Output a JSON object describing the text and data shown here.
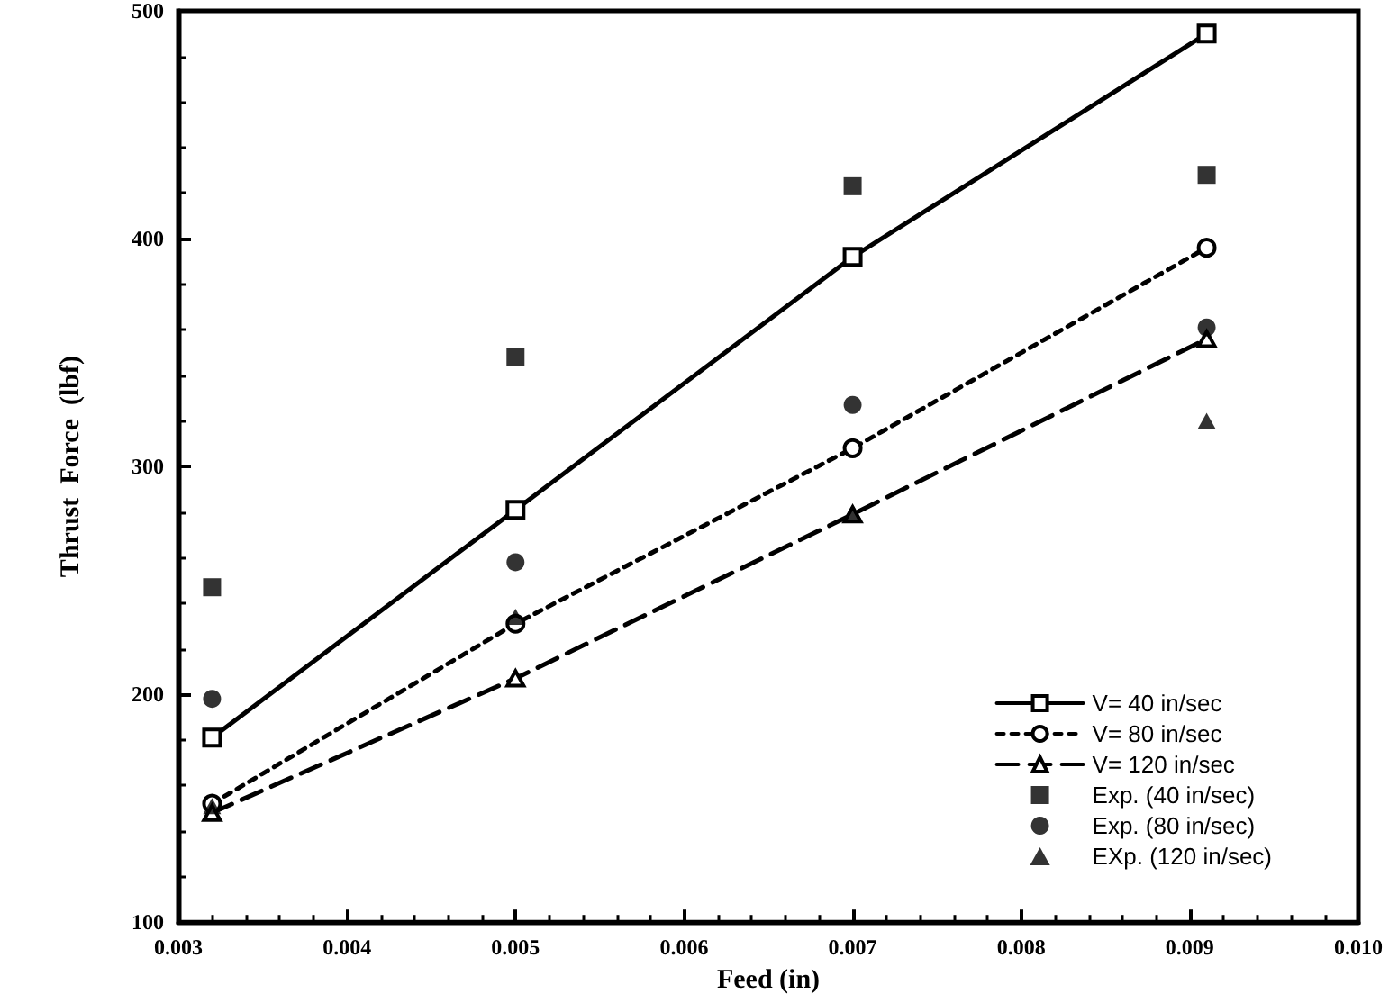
{
  "chart_data": {
    "type": "line",
    "xlabel": "Feed (in)",
    "ylabel": "Thrust  Force  (lbf)",
    "x": [
      0.0032,
      0.005,
      0.007,
      0.0091
    ],
    "series": [
      {
        "name": "V= 40 in/sec",
        "color": "#000000",
        "marker": "square",
        "line_style": "solid",
        "values": [
          181,
          281,
          392,
          490
        ]
      },
      {
        "name": "V= 80 in/sec",
        "color": "#000000",
        "marker": "circle",
        "line_style": "dotted",
        "values": [
          152,
          231,
          308,
          396
        ]
      },
      {
        "name": "V= 120 in/sec",
        "color": "#000000",
        "marker": "triangle",
        "line_style": "dashed",
        "values": [
          148,
          207,
          279,
          356
        ]
      },
      {
        "name": "Exp. (40 in/sec)",
        "type": "scatter",
        "color": "#000000",
        "marker": "square",
        "values": [
          247,
          348,
          423,
          428
        ]
      },
      {
        "name": "Exp. (80 in/sec)",
        "type": "scatter",
        "color": "#000000",
        "marker": "circle",
        "values": [
          198,
          258,
          327,
          361
        ]
      },
      {
        "name": "EXp. (120 in/sec)",
        "type": "scatter",
        "color": "#000000",
        "marker": "triangle",
        "values": [
          151,
          234,
          280,
          320
        ]
      }
    ],
    "xlim": [
      0.003,
      0.01
    ],
    "xticks": [
      {
        "value": 0.003,
        "label": "0.003"
      },
      {
        "value": 0.004,
        "label": "0.004"
      },
      {
        "value": 0.005,
        "label": "0.005"
      },
      {
        "value": 0.006,
        "label": "0.006"
      },
      {
        "value": 0.007,
        "label": "0.007"
      },
      {
        "value": 0.008,
        "label": "0.008"
      },
      {
        "value": 0.009,
        "label": "0.009"
      },
      {
        "value": 0.01,
        "label": "0.010"
      }
    ],
    "ylim": [
      100,
      500
    ],
    "yticks": [
      100,
      200,
      300,
      400,
      500
    ],
    "grid": false,
    "legend": "bottom right"
  }
}
